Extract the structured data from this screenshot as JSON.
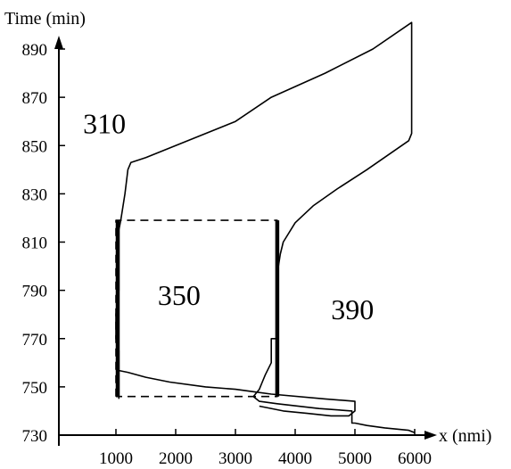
{
  "chart_data": {
    "type": "line",
    "ylabel": "Time (min)",
    "xlabel": "x (nmi)",
    "xlim": [
      0,
      6000
    ],
    "ylim": [
      730,
      900
    ],
    "x_ticks": [
      1000,
      2000,
      3000,
      4000,
      5000,
      6000
    ],
    "y_ticks": [
      730,
      750,
      770,
      790,
      810,
      830,
      850,
      870,
      890
    ],
    "grid": false,
    "region_labels": [
      {
        "text": "310",
        "x": 450,
        "y": 855
      },
      {
        "text": "350",
        "x": 1700,
        "y": 784
      },
      {
        "text": "390",
        "x": 4600,
        "y": 778
      }
    ],
    "series": [
      {
        "style": "thin",
        "points": [
          [
            1050,
            745
          ],
          [
            1050,
            765
          ],
          [
            1000,
            770
          ],
          [
            1000,
            775
          ],
          [
            1000,
            780
          ],
          [
            1050,
            790
          ],
          [
            1050,
            800
          ],
          [
            1050,
            810
          ],
          [
            1050,
            815
          ],
          [
            1080,
            819
          ],
          [
            1100,
            822
          ],
          [
            1150,
            830
          ],
          [
            1180,
            836
          ],
          [
            1200,
            840
          ],
          [
            1250,
            843
          ],
          [
            1500,
            845
          ],
          [
            2000,
            850
          ],
          [
            3000,
            860
          ],
          [
            3600,
            870
          ],
          [
            4500,
            880
          ],
          [
            5300,
            890
          ],
          [
            5950,
            901
          ],
          [
            5950,
            855
          ],
          [
            5900,
            852
          ],
          [
            5200,
            840
          ],
          [
            4700,
            832
          ],
          [
            4300,
            825
          ],
          [
            4000,
            818
          ],
          [
            3800,
            810
          ],
          [
            3750,
            805
          ],
          [
            3720,
            800
          ],
          [
            3700,
            795
          ],
          [
            3700,
            770
          ],
          [
            3600,
            770
          ],
          [
            3600,
            760
          ],
          [
            3500,
            755
          ],
          [
            3450,
            752
          ],
          [
            3400,
            749
          ],
          [
            3300,
            746
          ],
          [
            3400,
            744
          ],
          [
            3700,
            743
          ],
          [
            4400,
            741
          ],
          [
            4950,
            740
          ],
          [
            4950,
            735
          ],
          [
            5000,
            735
          ],
          [
            5200,
            734
          ],
          [
            5500,
            733
          ],
          [
            5900,
            732
          ],
          [
            6000,
            731
          ]
        ]
      },
      {
        "style": "thin",
        "points": [
          [
            1000,
            757
          ],
          [
            1200,
            756
          ],
          [
            1500,
            754
          ],
          [
            1900,
            752
          ],
          [
            2500,
            750
          ],
          [
            3000,
            749
          ],
          [
            3300,
            748
          ],
          [
            3600,
            747
          ],
          [
            4500,
            745
          ],
          [
            5000,
            744
          ],
          [
            5000,
            741
          ],
          [
            5000,
            740
          ],
          [
            4900,
            738
          ],
          [
            4600,
            738
          ],
          [
            4200,
            739
          ],
          [
            3800,
            740
          ],
          [
            3400,
            742
          ]
        ]
      },
      {
        "style": "dashed",
        "points": [
          [
            1000,
            746
          ],
          [
            1000,
            819
          ],
          [
            3700,
            819
          ],
          [
            3700,
            746
          ],
          [
            1000,
            746
          ]
        ]
      },
      {
        "style": "thick",
        "points": [
          [
            1030,
            746
          ],
          [
            1030,
            819
          ]
        ]
      },
      {
        "style": "thick",
        "points": [
          [
            3700,
            746
          ],
          [
            3700,
            819
          ]
        ]
      }
    ]
  }
}
